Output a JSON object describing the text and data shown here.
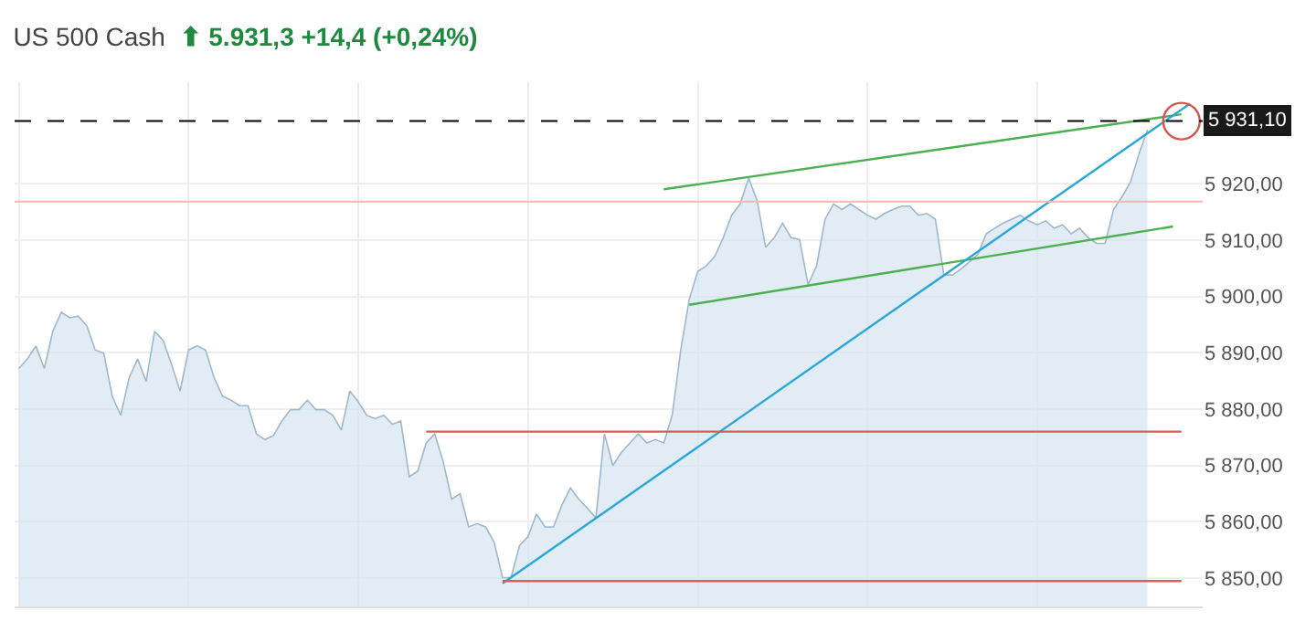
{
  "chart_data": {
    "type": "area",
    "title": "US 500 Cash",
    "subtitle": "⬆ 5.931,3 +14,4 (+0,24%)",
    "categories": [
      null,
      null,
      null,
      null,
      null,
      null,
      null,
      null,
      null,
      null,
      null,
      null,
      null,
      null,
      null,
      null,
      null,
      null,
      null,
      null,
      null,
      null,
      null,
      null,
      null,
      null,
      null,
      null,
      null,
      null,
      null,
      null,
      null,
      null,
      null,
      null,
      null,
      null,
      null,
      null,
      null,
      null,
      null,
      null,
      null,
      null,
      null,
      null,
      null,
      null,
      null,
      null,
      null,
      null,
      null,
      null,
      null,
      null,
      null,
      null,
      null,
      null,
      null,
      null,
      null,
      null,
      null,
      null,
      null,
      null,
      null,
      null,
      null,
      null,
      null,
      null,
      null,
      null,
      null,
      null,
      null,
      null,
      null,
      null,
      null,
      null,
      null,
      null,
      null,
      null,
      null,
      null,
      null,
      null,
      null,
      null,
      null,
      null,
      null,
      null,
      null,
      null,
      null,
      null,
      null,
      null,
      null,
      null,
      null,
      null,
      null,
      null,
      null,
      null,
      null,
      null,
      null,
      null,
      null,
      null,
      null,
      null,
      null,
      null,
      null,
      null,
      null,
      null,
      null,
      null,
      null,
      null,
      null,
      null,
      null,
      null,
      null,
      null,
      null,
      null
    ],
    "series": [
      {
        "color": "#9fb8cc",
        "values": [
          5887.2,
          5888.9,
          5891.2,
          5887.2,
          5893.8,
          5897.2,
          5896.2,
          5896.5,
          5894.8,
          5890.5,
          5889.9,
          5882.3,
          5878.9,
          5885.6,
          5888.9,
          5884.9,
          5893.8,
          5892.2,
          5887.9,
          5883.2,
          5890.5,
          5891.2,
          5890.5,
          5885.6,
          5882.3,
          5881.6,
          5880.6,
          5880.6,
          5875.6,
          5874.6,
          5875.3,
          5877.9,
          5879.9,
          5879.9,
          5881.6,
          5879.9,
          5879.9,
          5878.9,
          5876.3,
          5883.2,
          5881.3,
          5878.9,
          5878.3,
          5878.9,
          5877.3,
          5877.9,
          5868.0,
          5869.0,
          5874.0,
          5875.6,
          5870.7,
          5864.0,
          5865.0,
          5859.1,
          5859.7,
          5859.1,
          5856.4,
          5850.1,
          5850.1,
          5855.8,
          5857.4,
          5861.4,
          5859.1,
          5859.1,
          5863.0,
          5866.0,
          5864.0,
          5862.4,
          5860.7,
          5875.6,
          5870.0,
          5872.3,
          5874.0,
          5875.6,
          5874.0,
          5874.6,
          5874.0,
          5879.0,
          5890.5,
          5899.5,
          5904.4,
          5905.4,
          5907.1,
          5910.4,
          5914.4,
          5916.4,
          5921.0,
          5917.0,
          5908.7,
          5910.4,
          5913.0,
          5910.4,
          5910.1,
          5902.1,
          5905.4,
          5913.7,
          5916.4,
          5915.4,
          5916.4,
          5915.4,
          5914.4,
          5913.7,
          5914.7,
          5915.4,
          5916.0,
          5916.0,
          5914.4,
          5914.7,
          5913.7,
          5903.8,
          5903.8,
          5904.8,
          5906.1,
          5907.4,
          5911.1,
          5912.1,
          5913.0,
          5913.7,
          5914.4,
          5913.4,
          5912.7,
          5913.4,
          5912.1,
          5912.7,
          5911.1,
          5912.1,
          5910.4,
          5909.4,
          5909.4,
          5915.4,
          5917.7,
          5920.3,
          5925.3,
          5929.6,
          null,
          null,
          null,
          null,
          null,
          null
        ]
      },
      {
        "type": "line",
        "color": "#4caf50",
        "values": [
          null,
          null,
          null,
          null,
          null,
          null,
          null,
          null,
          null,
          null,
          null,
          null,
          null,
          null,
          null,
          null,
          null,
          null,
          null,
          null,
          null,
          null,
          null,
          null,
          null,
          null,
          null,
          null,
          null,
          null,
          null,
          null,
          null,
          null,
          null,
          null,
          null,
          null,
          null,
          null,
          null,
          null,
          null,
          null,
          null,
          null,
          null,
          null,
          null,
          null,
          null,
          null,
          null,
          null,
          null,
          null,
          null,
          null,
          null,
          null,
          null,
          null,
          null,
          null,
          null,
          null,
          null,
          null,
          null,
          null,
          null,
          null,
          null,
          null,
          null,
          null,
          5919.0,
          null,
          null,
          null,
          null,
          null,
          null,
          null,
          null,
          null,
          null,
          null,
          null,
          null,
          null,
          null,
          null,
          null,
          null,
          null,
          null,
          null,
          null,
          null,
          null,
          null,
          null,
          null,
          null,
          null,
          null,
          null,
          null,
          null,
          null,
          null,
          null,
          null,
          null,
          null,
          null,
          null,
          null,
          null,
          null,
          null,
          null,
          null,
          null,
          null,
          null,
          null,
          null,
          null,
          null,
          null,
          null,
          null,
          null,
          null,
          null,
          5932.3,
          null,
          null
        ]
      },
      {
        "type": "line",
        "color": "#4caf50",
        "values": [
          null,
          null,
          null,
          null,
          null,
          null,
          null,
          null,
          null,
          null,
          null,
          null,
          null,
          null,
          null,
          null,
          null,
          null,
          null,
          null,
          null,
          null,
          null,
          null,
          null,
          null,
          null,
          null,
          null,
          null,
          null,
          null,
          null,
          null,
          null,
          null,
          null,
          null,
          null,
          null,
          null,
          null,
          null,
          null,
          null,
          null,
          null,
          null,
          null,
          null,
          null,
          null,
          null,
          null,
          null,
          null,
          null,
          null,
          null,
          null,
          null,
          null,
          null,
          null,
          null,
          null,
          null,
          null,
          null,
          null,
          null,
          null,
          null,
          null,
          null,
          null,
          null,
          null,
          null,
          5898.5,
          null,
          null,
          null,
          null,
          null,
          null,
          null,
          null,
          null,
          null,
          null,
          null,
          null,
          null,
          null,
          null,
          null,
          null,
          null,
          null,
          null,
          null,
          null,
          null,
          null,
          null,
          null,
          null,
          null,
          null,
          null,
          null,
          null,
          null,
          null,
          null,
          null,
          null,
          null,
          null,
          null,
          null,
          null,
          null,
          null,
          null,
          null,
          null,
          null,
          null,
          null,
          null,
          null,
          null,
          null,
          null,
          5912.4,
          null,
          null,
          null
        ]
      },
      {
        "type": "line",
        "color": "#2aa6d8",
        "values": [
          null,
          null,
          null,
          null,
          null,
          null,
          null,
          null,
          null,
          null,
          null,
          null,
          null,
          null,
          null,
          null,
          null,
          null,
          null,
          null,
          null,
          null,
          null,
          null,
          null,
          null,
          null,
          null,
          null,
          null,
          null,
          null,
          null,
          null,
          null,
          null,
          null,
          null,
          null,
          null,
          null,
          null,
          null,
          null,
          null,
          null,
          null,
          null,
          null,
          null,
          null,
          null,
          null,
          null,
          null,
          null,
          null,
          5849.1,
          null,
          null,
          null,
          null,
          null,
          null,
          null,
          null,
          null,
          null,
          null,
          null,
          null,
          null,
          null,
          null,
          null,
          null,
          null,
          null,
          null,
          null,
          null,
          null,
          null,
          null,
          null,
          null,
          null,
          null,
          null,
          null,
          null,
          null,
          null,
          null,
          null,
          null,
          null,
          null,
          null,
          null,
          null,
          null,
          null,
          null,
          null,
          null,
          null,
          null,
          null,
          null,
          null,
          null,
          null,
          null,
          null,
          null,
          null,
          null,
          null,
          null,
          null,
          null,
          null,
          null,
          null,
          null,
          null,
          null,
          null,
          null,
          null,
          null,
          null,
          null,
          null,
          null,
          null,
          null,
          5934.2,
          null
        ]
      },
      {
        "type": "line",
        "color": "#e05a5a",
        "values": [
          null,
          null,
          null,
          null,
          null,
          null,
          null,
          null,
          null,
          null,
          null,
          null,
          null,
          null,
          null,
          null,
          null,
          null,
          null,
          null,
          null,
          null,
          null,
          null,
          null,
          null,
          null,
          null,
          null,
          null,
          null,
          null,
          null,
          null,
          null,
          null,
          null,
          null,
          null,
          null,
          null,
          null,
          null,
          null,
          null,
          null,
          null,
          null,
          5876.0,
          null,
          null,
          null,
          null,
          null,
          null,
          null,
          null,
          null,
          null,
          null,
          null,
          null,
          null,
          null,
          null,
          null,
          null,
          null,
          null,
          null,
          null,
          null,
          null,
          null,
          null,
          null,
          null,
          null,
          null,
          null,
          null,
          null,
          null,
          null,
          null,
          null,
          null,
          null,
          null,
          null,
          null,
          null,
          null,
          null,
          null,
          null,
          null,
          null,
          null,
          null,
          null,
          null,
          null,
          null,
          null,
          null,
          null,
          null,
          null,
          null,
          null,
          null,
          null,
          null,
          null,
          null,
          null,
          null,
          null,
          null,
          null,
          null,
          null,
          null,
          null,
          null,
          null,
          null,
          null,
          null,
          null,
          null,
          null,
          null,
          null,
          null,
          null,
          5876.0,
          null,
          null
        ]
      },
      {
        "type": "line",
        "color": "#e05a5a",
        "values": [
          null,
          null,
          null,
          null,
          null,
          null,
          null,
          null,
          null,
          null,
          null,
          null,
          null,
          null,
          null,
          null,
          null,
          null,
          null,
          null,
          null,
          null,
          null,
          null,
          null,
          null,
          null,
          null,
          null,
          null,
          null,
          null,
          null,
          null,
          null,
          null,
          null,
          null,
          null,
          null,
          null,
          null,
          null,
          null,
          null,
          null,
          null,
          null,
          null,
          null,
          null,
          null,
          null,
          null,
          null,
          null,
          null,
          5849.5,
          null,
          null,
          null,
          null,
          null,
          null,
          null,
          null,
          null,
          null,
          null,
          null,
          null,
          null,
          null,
          null,
          null,
          null,
          null,
          null,
          null,
          null,
          null,
          null,
          null,
          null,
          null,
          null,
          null,
          null,
          null,
          null,
          null,
          null,
          null,
          null,
          null,
          null,
          null,
          null,
          null,
          null,
          null,
          null,
          null,
          null,
          null,
          null,
          null,
          null,
          null,
          null,
          null,
          null,
          null,
          null,
          null,
          null,
          null,
          null,
          null,
          null,
          null,
          null,
          null,
          null,
          null,
          null,
          null,
          null,
          null,
          null,
          null,
          null,
          null,
          null,
          null,
          null,
          null,
          5849.5,
          null,
          null
        ]
      },
      {
        "type": "scatter",
        "color": "#d9534f",
        "marker": "circle",
        "values": [
          null,
          null,
          null,
          null,
          null,
          null,
          null,
          null,
          null,
          null,
          null,
          null,
          null,
          null,
          null,
          null,
          null,
          null,
          null,
          null,
          null,
          null,
          null,
          null,
          null,
          null,
          null,
          null,
          null,
          null,
          null,
          null,
          null,
          null,
          null,
          null,
          null,
          null,
          null,
          null,
          null,
          null,
          null,
          null,
          null,
          null,
          null,
          null,
          null,
          null,
          null,
          null,
          null,
          null,
          null,
          null,
          null,
          null,
          null,
          null,
          null,
          null,
          null,
          null,
          null,
          null,
          null,
          null,
          null,
          null,
          null,
          null,
          null,
          null,
          null,
          null,
          null,
          null,
          null,
          null,
          null,
          null,
          null,
          null,
          null,
          null,
          null,
          null,
          null,
          null,
          null,
          null,
          null,
          null,
          null,
          null,
          null,
          null,
          null,
          null,
          null,
          null,
          null,
          null,
          null,
          null,
          null,
          null,
          null,
          null,
          null,
          null,
          null,
          null,
          null,
          null,
          null,
          null,
          null,
          null,
          null,
          null,
          null,
          null,
          null,
          null,
          null,
          null,
          null,
          null,
          null,
          null,
          null,
          null,
          null,
          null,
          null,
          5931.1,
          null,
          null
        ]
      }
    ],
    "ref_lines": [
      {
        "axis": "y",
        "value": 5931.1,
        "label": "5 931,10",
        "color": "#000000",
        "line_style": "dashed"
      },
      {
        "axis": "y",
        "value": 5916.8,
        "color": "#f0b8b0",
        "line_style": "solid"
      }
    ],
    "ylim": [
      5845,
      5938
    ],
    "yticks": [
      {
        "value": 5850,
        "label": "5 850,00"
      },
      {
        "value": 5860,
        "label": "5 860,00"
      },
      {
        "value": 5870,
        "label": "5 870,00"
      },
      {
        "value": 5880,
        "label": "5 880,00"
      },
      {
        "value": 5890,
        "label": "5 890,00"
      },
      {
        "value": 5900,
        "label": "5 900,00"
      },
      {
        "value": 5910,
        "label": "5 910,00"
      },
      {
        "value": 5920,
        "label": "5 920,00"
      }
    ],
    "grid": true,
    "legend": false,
    "tick_labels": "y"
  }
}
